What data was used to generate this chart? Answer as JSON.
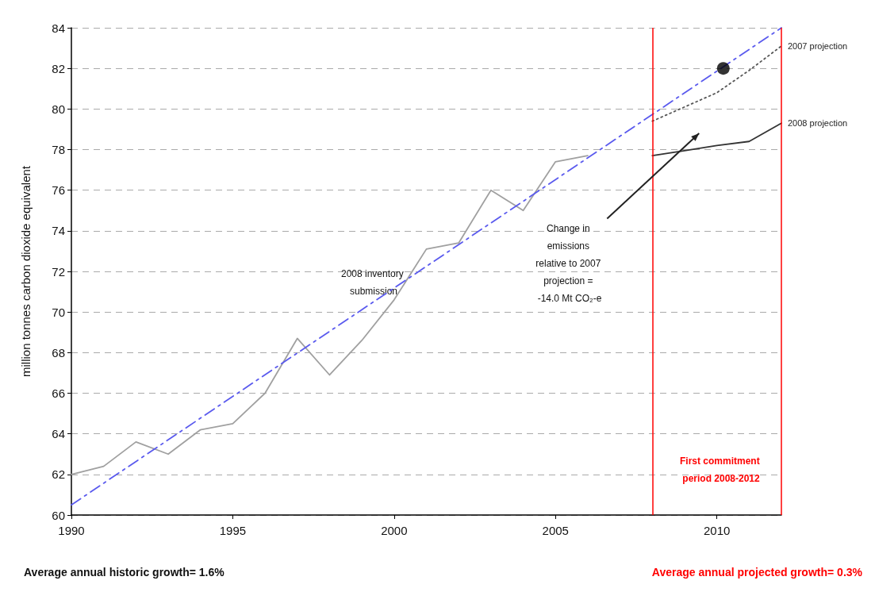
{
  "chart_data": {
    "type": "line",
    "ylabel": "million tonnes carbon dioxide equivalent",
    "xlim": [
      1990,
      2012
    ],
    "xticks": [
      1990,
      1995,
      2000,
      2005,
      2010
    ],
    "ylim": [
      60,
      84
    ],
    "yticks": [
      60,
      62,
      64,
      66,
      68,
      70,
      72,
      74,
      76,
      78,
      80,
      82,
      84
    ],
    "grid": "y",
    "legend": false,
    "marker": "none",
    "series": [
      {
        "color": "#a0a0a0",
        "line_style": "solid",
        "x": [
          1990,
          1991,
          1992,
          1993,
          1994,
          1995,
          1996,
          1997,
          1998,
          1999,
          2000,
          2001,
          2002,
          2003,
          2004,
          2005,
          2006
        ],
        "values": [
          62,
          62.4,
          63.6,
          63,
          64.2,
          64.5,
          66,
          68.7,
          66.9,
          68.6,
          70.6,
          73.1,
          73.4,
          76,
          75,
          77.4,
          77.7
        ]
      },
      {
        "color": "#5a5aee",
        "line_style": "dashed",
        "x": [
          1990,
          2012
        ],
        "values": [
          60.5,
          84
        ]
      },
      {
        "name": "2007 projection",
        "color": "#555555",
        "line_style": "dotted",
        "x": [
          2008,
          2009,
          2010,
          2011,
          2012
        ],
        "values": [
          79.4,
          80.1,
          80.8,
          81.9,
          83.1
        ]
      },
      {
        "name": "2008 projection",
        "color": "#333333",
        "line_style": "solid",
        "x": [
          2008,
          2009,
          2010,
          2011,
          2012
        ],
        "values": [
          77.7,
          77.95,
          78.2,
          78.4,
          79.3
        ]
      },
      {
        "type": "scatter",
        "marker": "circle",
        "color": "#000000",
        "x": [
          2010.2
        ],
        "values": [
          82
        ]
      }
    ],
    "ref_lines": [
      {
        "axis": "x",
        "value": 2008,
        "color": "#ff0000"
      },
      {
        "axis": "x",
        "value": 2012,
        "color": "#ff0000"
      }
    ],
    "annotations": [
      "Average annual historic growth= 1.6%",
      "Average annual projected growth= 0.3%",
      "First commitment period 2008-2012",
      "2008 inventory submission",
      "Change in emissions relative to 2007 projection = -14.0 Mt CO₂-e"
    ]
  }
}
